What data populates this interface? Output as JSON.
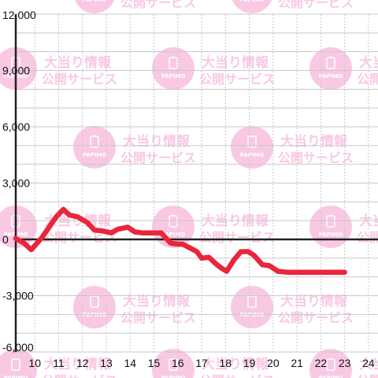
{
  "watermark": {
    "logo_text": "PAPIMO",
    "line1": "大当り情報",
    "line2": "公開サービス",
    "color": "#f9c9e4"
  },
  "chart_data": {
    "type": "line",
    "title": "",
    "xlabel": "",
    "ylabel": "",
    "xlim": [
      9.2,
      24.4
    ],
    "ylim": [
      -6000,
      12000
    ],
    "x_ticks": [
      10,
      11,
      12,
      13,
      14,
      15,
      16,
      17,
      18,
      19,
      20,
      21,
      22,
      23,
      24
    ],
    "x_tick_labels": [
      "10",
      "11",
      "12",
      "13",
      "14",
      "15",
      "16",
      "17",
      "18",
      "19",
      "20",
      "21",
      "22",
      "23",
      "24"
    ],
    "y_ticks": [
      12000,
      9000,
      6000,
      3000,
      0,
      -3000,
      -6000
    ],
    "y_tick_labels": [
      "12,000",
      "9,000",
      "6,000",
      "3,000",
      "0",
      "-3,000",
      "-6,000"
    ],
    "grid": true,
    "line_color": "#e8263c",
    "series": [
      {
        "x": [
          9.2,
          9.55,
          9.85,
          10.3,
          10.9,
          11.2,
          11.45,
          11.8,
          12.2,
          12.5,
          12.85,
          13.2,
          13.5,
          13.9,
          14.2,
          14.5,
          15.1,
          15.3,
          15.7,
          16.0,
          16.2,
          16.5,
          16.8,
          17.0,
          17.3,
          17.6,
          17.85,
          18.05,
          18.35,
          18.65,
          18.95,
          19.2,
          19.55,
          19.85,
          20.2,
          20.6,
          21.0,
          21.6,
          22.3,
          23.0
        ],
        "y": [
          50,
          -200,
          -550,
          100,
          1200,
          1600,
          1300,
          1200,
          900,
          500,
          450,
          350,
          550,
          650,
          400,
          350,
          350,
          350,
          -200,
          -250,
          -250,
          -450,
          -650,
          -1000,
          -950,
          -1300,
          -1550,
          -1700,
          -1100,
          -650,
          -650,
          -850,
          -1350,
          -1400,
          -1700,
          -1750,
          -1750,
          -1750,
          -1750,
          -1750
        ]
      }
    ]
  }
}
